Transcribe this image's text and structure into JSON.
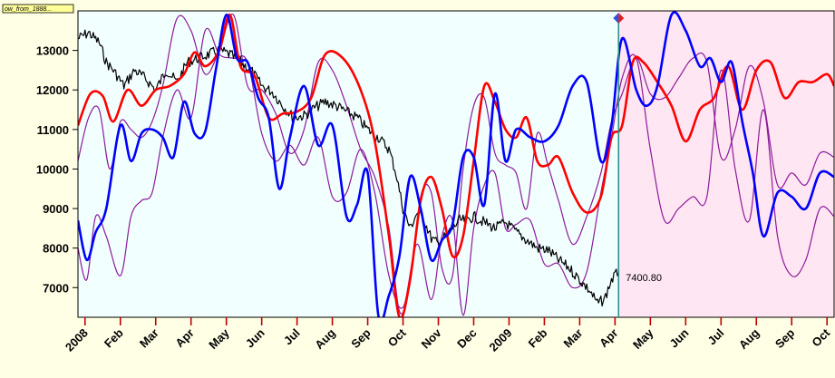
{
  "title_tag": "ow_from_1888...",
  "cursor_value": "7400.80",
  "colors": {
    "background": "#ffffe6",
    "plot_history": "#f2ffff",
    "plot_forecast": "#ffe6f2",
    "price": "#000000",
    "red_series": "#ff0000",
    "blue_series": "#0000ff",
    "purple_series": "#8b1a9b",
    "cursor": "#2f8f8f"
  },
  "chart_data": {
    "type": "line",
    "x_tick_labels": [
      "2008",
      "Feb",
      "Mar",
      "Apr",
      "May",
      "Jun",
      "Jul",
      "Aug",
      "Sep",
      "Oct",
      "Nov",
      "Dec",
      "2009",
      "Feb",
      "Mar",
      "Apr",
      "May",
      "Jun",
      "Jul",
      "Aug",
      "Sep",
      "Oct"
    ],
    "y_ticks": [
      7000,
      8000,
      9000,
      10000,
      11000,
      12000,
      13000
    ],
    "ylim": [
      6250,
      14000
    ],
    "xlim": [
      0,
      21.4
    ],
    "cursor_x": 15.3,
    "forecast_start_x": 15.3,
    "series": [
      {
        "key": "price",
        "color": "#000000",
        "width": 1.2,
        "x": [
          0,
          0.3,
          0.6,
          0.8,
          1.0,
          1.3,
          1.6,
          1.9,
          2.2,
          2.5,
          2.8,
          3.1,
          3.4,
          3.7,
          4.0,
          4.3,
          4.6,
          4.9,
          5.2,
          5.5,
          5.8,
          6.1,
          6.4,
          6.7,
          7.0,
          7.3,
          7.6,
          7.9,
          8.2,
          8.5,
          8.8,
          9.0,
          9.2,
          9.4,
          9.6,
          9.8,
          10.0,
          10.2,
          10.4,
          10.6,
          10.8,
          11.0,
          11.2,
          11.5,
          11.8,
          12.1,
          12.4,
          12.7,
          13.0,
          13.3,
          13.6,
          13.9,
          14.2,
          14.5,
          14.7,
          14.9,
          15.1,
          15.3
        ],
        "y": [
          13300,
          13450,
          13200,
          12700,
          12500,
          12100,
          12500,
          12300,
          12000,
          12500,
          12200,
          12700,
          12800,
          12900,
          13000,
          12900,
          12700,
          12500,
          12100,
          11950,
          11600,
          11300,
          11350,
          11550,
          11700,
          11600,
          11450,
          11300,
          11000,
          10800,
          10500,
          9900,
          9000,
          8500,
          8900,
          8700,
          8250,
          8100,
          8300,
          8500,
          8700,
          8700,
          8800,
          8650,
          8500,
          8650,
          8400,
          8200,
          8000,
          7950,
          7700,
          7500,
          7200,
          6900,
          6600,
          6700,
          7200,
          7400
        ]
      },
      {
        "key": "red",
        "color": "#ff0000",
        "width": 2.6,
        "x": [
          0,
          0.35,
          0.7,
          1.0,
          1.4,
          1.8,
          2.2,
          2.6,
          3.0,
          3.3,
          3.6,
          4.0,
          4.3,
          4.6,
          5.0,
          5.4,
          5.8,
          6.2,
          6.6,
          7.0,
          7.5,
          8.0,
          8.4,
          8.8,
          9.1,
          9.4,
          9.7,
          10.0,
          10.3,
          10.6,
          10.9,
          11.2,
          11.5,
          11.8,
          12.1,
          12.4,
          12.7,
          13.0,
          13.3,
          13.6,
          14.0,
          14.4,
          14.8,
          15.1,
          15.4,
          15.7,
          16.0,
          16.4,
          16.8,
          17.2,
          17.6,
          18.0,
          18.4,
          18.8,
          19.2,
          19.6,
          20.0,
          20.4,
          20.8,
          21.2,
          21.4
        ],
        "y": [
          11100,
          11900,
          11850,
          11200,
          12000,
          11600,
          12000,
          12100,
          12400,
          12950,
          12600,
          13000,
          13900,
          12600,
          12350,
          11300,
          11400,
          11450,
          11800,
          12900,
          12800,
          12000,
          10700,
          8300,
          6250,
          7200,
          9200,
          9800,
          9000,
          7800,
          8300,
          10200,
          12100,
          11700,
          11000,
          10800,
          11300,
          10200,
          10100,
          10300,
          9400,
          8900,
          9300,
          10800,
          11100,
          12700,
          12700,
          12200,
          11600,
          10700,
          11500,
          11800,
          12600,
          11500,
          12500,
          12700,
          11800,
          12200,
          12200,
          12400,
          12100
        ]
      },
      {
        "key": "blue",
        "color": "#0000ff",
        "width": 2.6,
        "x": [
          0,
          0.25,
          0.5,
          0.8,
          1.2,
          1.5,
          1.8,
          2.1,
          2.4,
          2.7,
          3.0,
          3.3,
          3.6,
          3.9,
          4.2,
          4.5,
          4.8,
          5.1,
          5.4,
          5.7,
          6.0,
          6.4,
          6.8,
          7.2,
          7.6,
          7.9,
          8.2,
          8.5,
          8.8,
          9.1,
          9.4,
          9.7,
          10.0,
          10.3,
          10.6,
          10.9,
          11.2,
          11.5,
          11.8,
          12.1,
          12.4,
          12.8,
          13.2,
          13.6,
          14.0,
          14.4,
          14.8,
          15.1,
          15.4,
          15.8,
          16.1,
          16.4,
          16.8,
          17.2,
          17.6,
          17.9,
          18.2,
          18.5,
          18.8,
          19.1,
          19.4,
          19.8,
          20.2,
          20.6,
          21.0,
          21.4
        ],
        "y": [
          8700,
          7700,
          8400,
          9000,
          11100,
          10200,
          10900,
          11000,
          10800,
          10300,
          11700,
          10900,
          10950,
          12500,
          13900,
          12800,
          12700,
          11800,
          11300,
          9500,
          10800,
          12100,
          10600,
          11100,
          8800,
          9100,
          9900,
          6300,
          6800,
          7800,
          9800,
          9000,
          7700,
          8200,
          8600,
          10300,
          10300,
          9100,
          11900,
          10200,
          11000,
          10800,
          10700,
          11100,
          12100,
          12200,
          10200,
          11100,
          13300,
          12000,
          11600,
          12100,
          13900,
          13500,
          12600,
          12800,
          12200,
          12700,
          11200,
          9900,
          8300,
          9400,
          9300,
          9000,
          9900,
          9800
        ]
      },
      {
        "key": "purple1",
        "color": "#8b1a9b",
        "width": 1.2,
        "x": [
          0,
          0.3,
          0.6,
          0.9,
          1.2,
          1.5,
          1.8,
          2.1,
          2.4,
          2.8,
          3.2,
          3.6,
          4.0,
          4.4,
          4.8,
          5.2,
          5.6,
          6.0,
          6.4,
          6.8,
          7.2,
          7.6,
          8.0,
          8.4,
          8.8,
          9.1,
          9.4,
          9.7,
          10.0,
          10.3,
          10.6,
          10.9,
          11.2,
          11.5,
          11.8,
          12.1,
          12.4,
          12.7,
          13.0,
          13.3,
          13.6,
          14.0,
          14.4,
          14.8,
          15.1,
          15.4,
          15.8,
          16.2,
          16.6,
          17.0,
          17.4,
          17.8,
          18.2,
          18.6,
          19.0,
          19.4,
          19.8,
          20.2,
          20.6,
          21.0,
          21.4
        ],
        "y": [
          10200,
          11300,
          11500,
          10000,
          11200,
          11000,
          10800,
          11200,
          12100,
          13800,
          13500,
          12400,
          13000,
          13900,
          12100,
          12000,
          11400,
          10400,
          11000,
          12700,
          12500,
          11600,
          10500,
          9800,
          8500,
          6400,
          7100,
          9300,
          9400,
          7500,
          7300,
          10000,
          11600,
          11800,
          10400,
          10100,
          9900,
          9000,
          10900,
          10100,
          9200,
          8100,
          8800,
          9900,
          11200,
          11900,
          12800,
          11900,
          11800,
          12300,
          12800,
          12700,
          10300,
          11000,
          12600,
          11700,
          9600,
          9900,
          9600,
          10400,
          10300
        ]
      },
      {
        "key": "purple2",
        "color": "#8b1a9b",
        "width": 1.2,
        "x": [
          0,
          0.25,
          0.5,
          0.8,
          1.2,
          1.5,
          1.8,
          2.1,
          2.4,
          2.8,
          3.2,
          3.6,
          4.0,
          4.4,
          4.8,
          5.2,
          5.6,
          6.0,
          6.4,
          6.8,
          7.2,
          7.6,
          8.0,
          8.4,
          8.8,
          9.2,
          9.6,
          10.0,
          10.3,
          10.6,
          10.9,
          11.2,
          11.5,
          11.8,
          12.1,
          12.4,
          12.8,
          13.2,
          13.6,
          14.0,
          14.4,
          14.8,
          15.1,
          15.4,
          15.8,
          16.2,
          16.6,
          17.0,
          17.4,
          17.8,
          18.2,
          18.6,
          19.0,
          19.4,
          19.8,
          20.2,
          20.6,
          21.0,
          21.4
        ],
        "y": [
          8000,
          7200,
          8800,
          8300,
          7300,
          8800,
          9200,
          9400,
          10800,
          12000,
          11300,
          13500,
          12900,
          12800,
          12700,
          10900,
          10200,
          10600,
          10100,
          10800,
          9300,
          9400,
          10500,
          9400,
          7300,
          6500,
          8100,
          6700,
          8300,
          8700,
          6300,
          8500,
          9600,
          9900,
          8500,
          8600,
          8700,
          7600,
          7600,
          7000,
          7400,
          9400,
          10800,
          12300,
          12800,
          10500,
          8700,
          9000,
          9300,
          9300,
          12500,
          10000,
          8700,
          11500,
          8300,
          7300,
          7700,
          9000,
          8800
        ]
      }
    ]
  }
}
